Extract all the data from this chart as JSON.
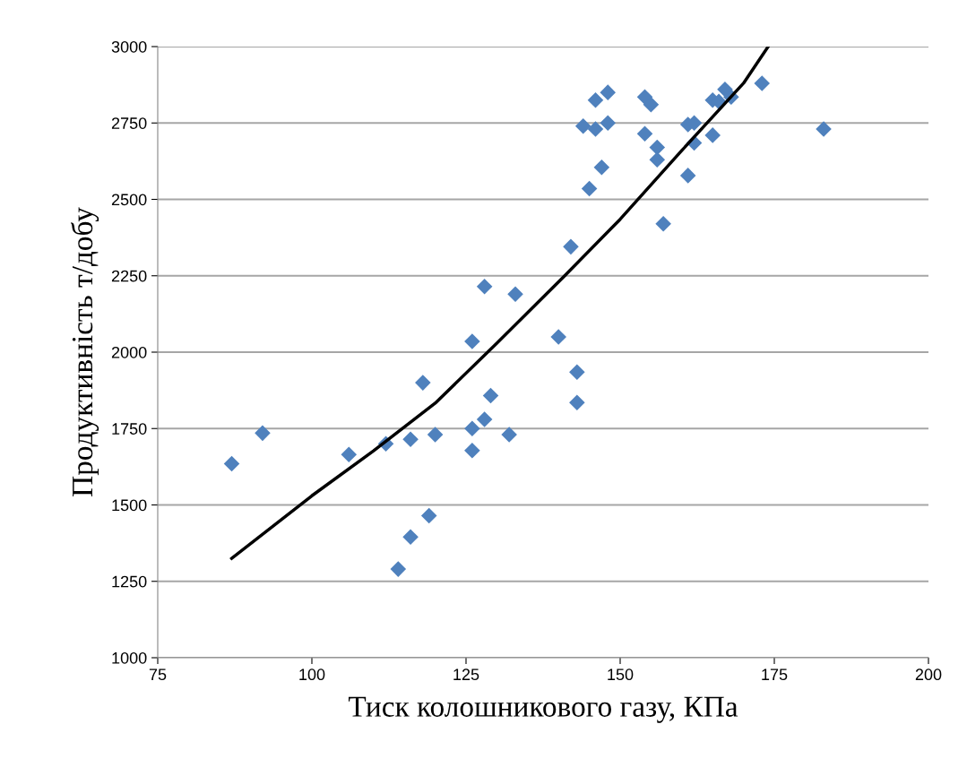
{
  "chart_data": {
    "type": "scatter",
    "xlabel": "Тиск колошникового газу, КПа",
    "ylabel": "Продуктивність т/добу",
    "series": [
      {
        "color": "#4f81bd",
        "marker": "diamond",
        "x": [
          87,
          92,
          106,
          112,
          114,
          116,
          116,
          118,
          119,
          120,
          126,
          126,
          126,
          128,
          128,
          129,
          132,
          133,
          140,
          142,
          143,
          143,
          144,
          145,
          146,
          146,
          147,
          148,
          148,
          154,
          154,
          155,
          156,
          156,
          157,
          161,
          161,
          162,
          162,
          165,
          165,
          167,
          168,
          166,
          173,
          183
        ],
        "values": [
          1635,
          1735,
          1665,
          1700,
          1290,
          1395,
          1715,
          1900,
          1465,
          1730,
          2035,
          1750,
          1678,
          2215,
          1780,
          1858,
          1730,
          2190,
          2050,
          2345,
          1935,
          1835,
          2740,
          2535,
          2825,
          2730,
          2605,
          2850,
          2750,
          2835,
          2715,
          2810,
          2670,
          2630,
          2420,
          2745,
          2578,
          2750,
          2685,
          2825,
          2710,
          2860,
          2835,
          2820,
          2880,
          2730
        ]
      },
      {
        "type": "line",
        "color": "#000000",
        "marker": "none",
        "x": [
          87,
          100,
          110,
          120,
          130,
          141,
          150,
          160,
          170,
          174
        ],
        "values": [
          1325,
          1530,
          1677,
          1833,
          2029,
          2250,
          2435,
          2660,
          2880,
          3000
        ]
      }
    ],
    "xlim": [
      75,
      200
    ],
    "xticks": [
      75,
      100,
      125,
      150,
      175,
      200
    ],
    "ylim": [
      1000,
      3000
    ],
    "yticks": [
      1000,
      1250,
      1500,
      1750,
      2000,
      2250,
      2500,
      2750,
      3000
    ],
    "grid": "y"
  }
}
